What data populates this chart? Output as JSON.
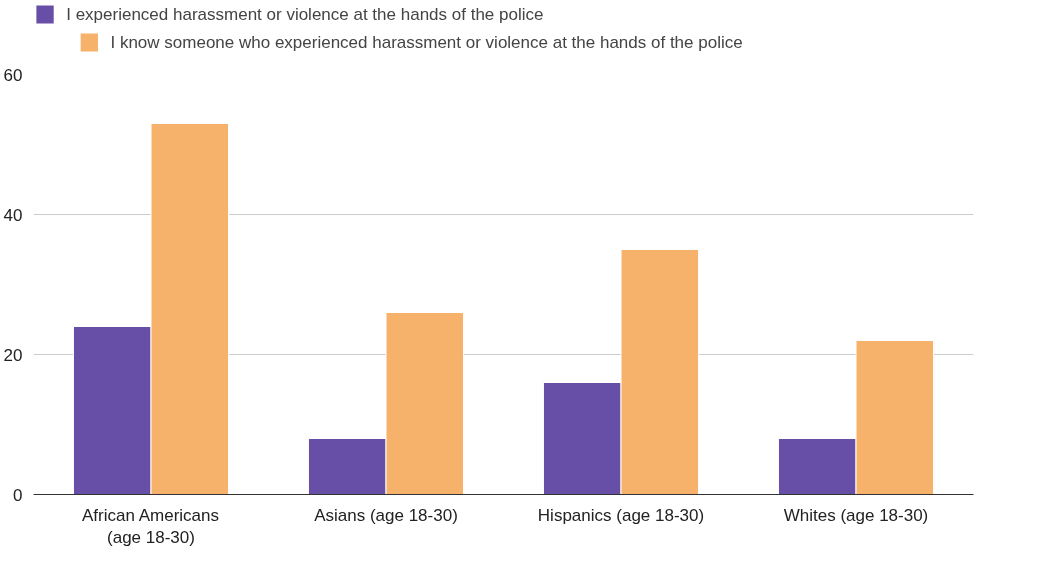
{
  "chart_data": {
    "type": "bar",
    "categories": [
      "African Americans (age 18-30)",
      "Asians (age 18-30)",
      "Hispanics (age 18-30)",
      "Whites (age 18-30)"
    ],
    "series": [
      {
        "name": "I experienced harassment or violence at the hands of the police",
        "color": "#674ea7",
        "values": [
          24,
          8,
          16,
          8
        ]
      },
      {
        "name": "I know someone who experienced harassment or violence at the hands of the police",
        "color": "#f6b26b",
        "values": [
          53,
          26,
          35,
          22
        ]
      }
    ],
    "ylim": [
      0,
      60
    ],
    "yticks": [
      0,
      20,
      40,
      60
    ],
    "grid": "y",
    "legend": "top"
  }
}
